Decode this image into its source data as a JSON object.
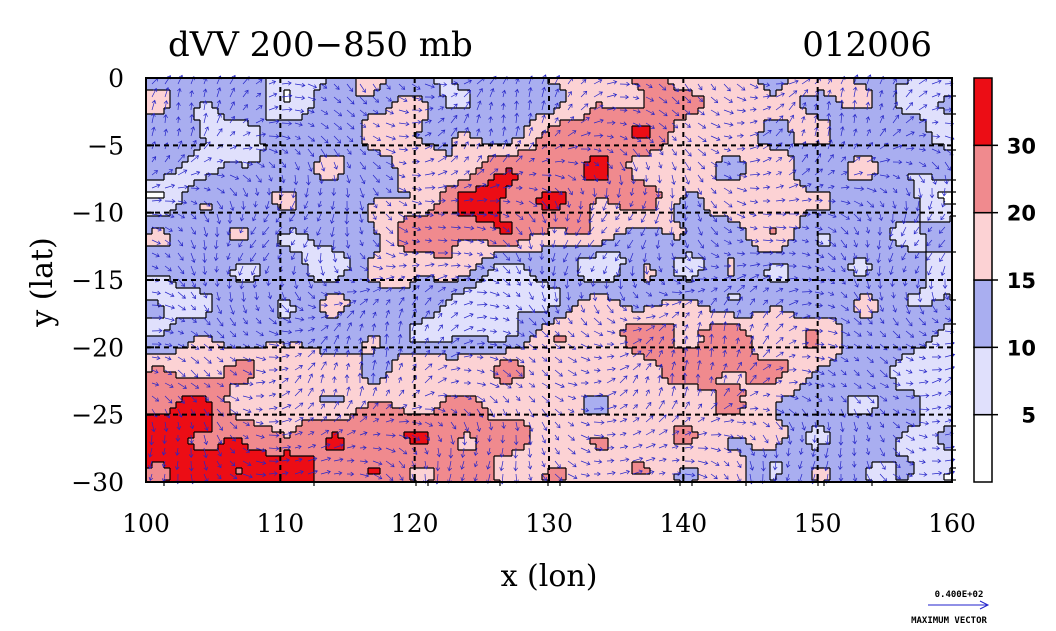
{
  "chart_data": {
    "type": "heatmap",
    "title": "dVV 200−850 mb",
    "date_label": "012006",
    "xlabel": "x (lon)",
    "ylabel": "y (lat)",
    "xlim": [
      100,
      160
    ],
    "ylim": [
      -30,
      0
    ],
    "x_ticks": [
      100,
      110,
      120,
      130,
      140,
      150,
      160
    ],
    "x_tick_labels": [
      "100",
      "110",
      "120",
      "130",
      "140",
      "150",
      "160"
    ],
    "y_ticks": [
      0,
      -5,
      -10,
      -15,
      -20,
      -25,
      -30
    ],
    "y_tick_labels": [
      "0",
      "−5",
      "−10",
      "−15",
      "−20",
      "−25",
      "−30"
    ],
    "grid": true,
    "colorbar": {
      "levels": [
        0,
        5,
        10,
        15,
        20,
        30,
        40
      ],
      "labels": [
        "5",
        "10",
        "15",
        "20",
        "30"
      ],
      "colors": [
        "#ffffff",
        "#e0e0fc",
        "#a9aef0",
        "#fcd2d4",
        "#f08a8e",
        "#ec0d15"
      ]
    },
    "field_rows": [
      [
        2,
        2,
        2,
        1,
        2,
        3,
        2,
        1,
        2,
        2,
        3,
        3,
        4,
        3,
        3,
        2,
        3,
        3,
        2,
        1
      ],
      [
        2,
        1,
        2,
        2,
        2,
        2,
        3,
        2,
        2,
        3,
        4,
        4,
        4,
        3,
        3,
        3,
        3,
        2,
        2,
        1
      ],
      [
        2,
        2,
        1,
        2,
        2,
        2,
        3,
        3,
        4,
        4,
        4,
        4,
        3,
        3,
        3,
        3,
        2,
        2,
        2,
        2
      ],
      [
        1,
        2,
        2,
        2,
        2,
        2,
        3,
        4,
        5,
        4,
        4,
        4,
        4,
        3,
        3,
        3,
        2,
        2,
        2,
        1
      ],
      [
        2,
        2,
        2,
        2,
        2,
        3,
        4,
        4,
        4,
        4,
        4,
        3,
        3,
        2,
        2,
        3,
        2,
        2,
        2,
        2
      ],
      [
        2,
        2,
        2,
        2,
        1,
        2,
        3,
        3,
        2,
        2,
        2,
        1,
        2,
        1,
        2,
        2,
        2,
        2,
        2,
        1
      ],
      [
        1,
        2,
        2,
        2,
        2,
        2,
        2,
        2,
        1,
        1,
        2,
        2,
        2,
        2,
        2,
        2,
        2,
        2,
        2,
        1
      ],
      [
        2,
        2,
        2,
        1,
        2,
        2,
        2,
        1,
        1,
        2,
        3,
        3,
        4,
        4,
        4,
        3,
        3,
        2,
        2,
        2
      ],
      [
        3,
        3,
        3,
        3,
        3,
        3,
        3,
        3,
        3,
        3,
        3,
        3,
        4,
        4,
        4,
        3,
        3,
        2,
        2,
        1
      ],
      [
        4,
        4,
        3,
        3,
        3,
        3,
        3,
        3,
        3,
        3,
        3,
        3,
        3,
        3,
        3,
        3,
        2,
        2,
        2,
        1
      ],
      [
        5,
        5,
        4,
        4,
        4,
        4,
        4,
        4,
        4,
        4,
        3,
        3,
        3,
        3,
        3,
        3,
        2,
        2,
        2,
        1
      ],
      [
        5,
        5,
        5,
        5,
        4,
        4,
        4,
        4,
        4,
        3,
        3,
        3,
        3,
        3,
        3,
        2,
        2,
        2,
        1,
        1
      ]
    ],
    "vector_legend": {
      "value_label": "0.400E+02",
      "caption": "MAXIMUM VECTOR"
    }
  }
}
